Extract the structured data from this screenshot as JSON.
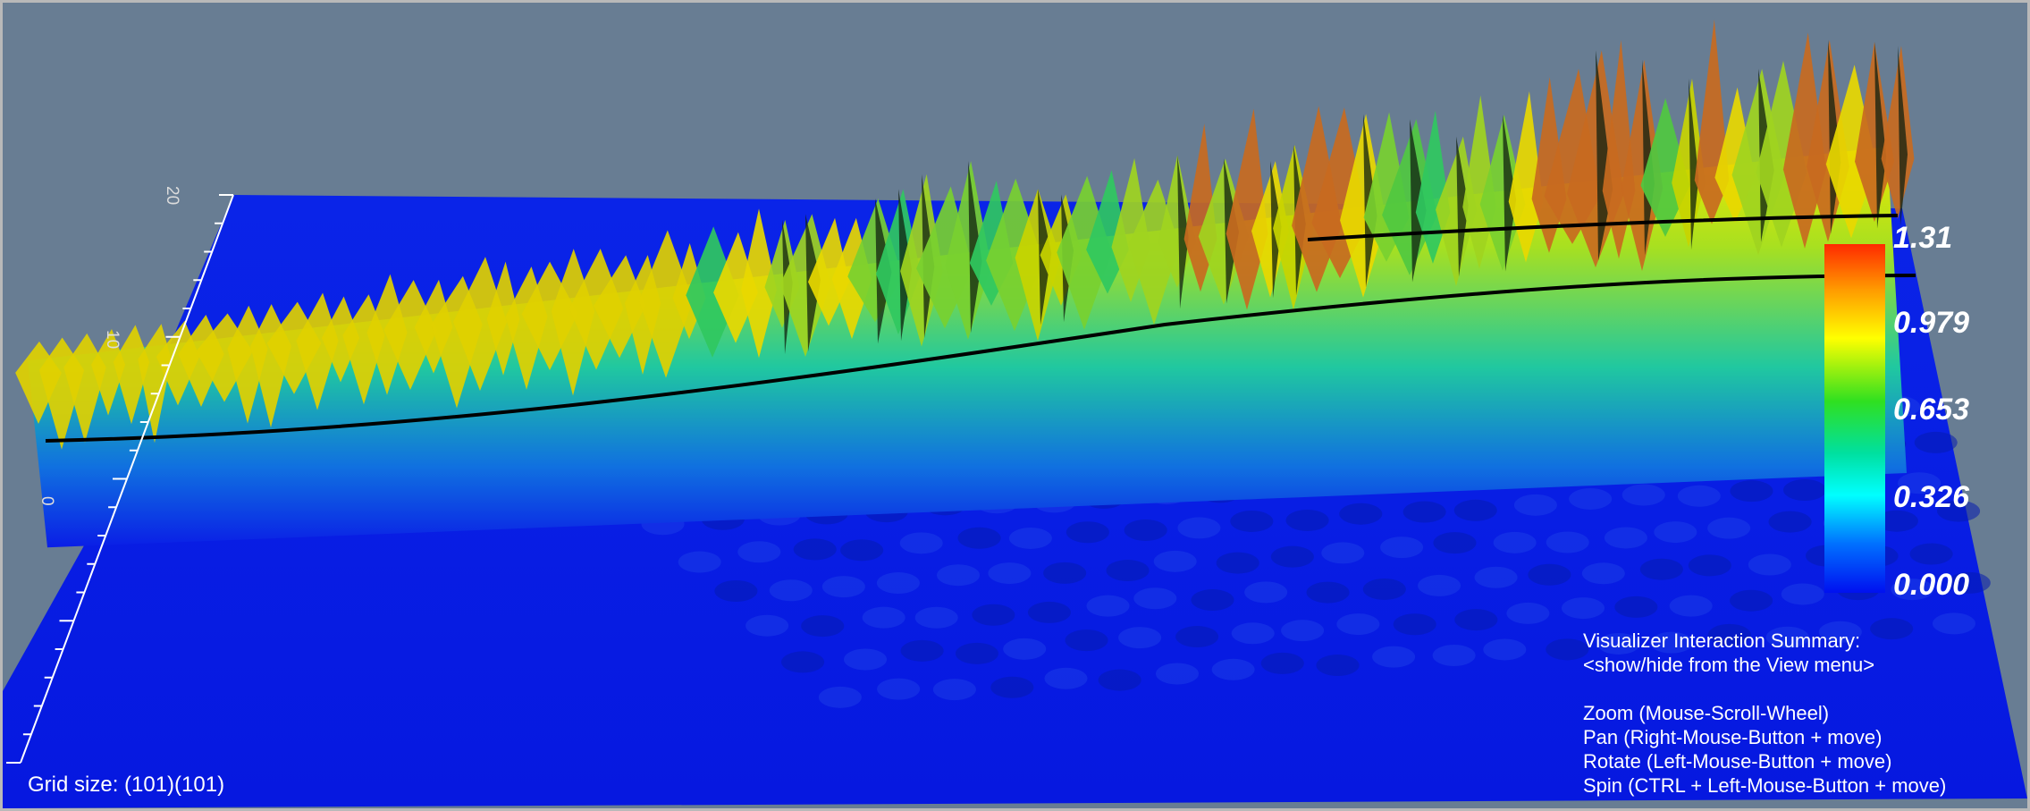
{
  "window": {
    "grid_size_label": "Grid size: (101)(101)"
  },
  "colorbar": {
    "labels": [
      "1.31",
      "0.979",
      "0.653",
      "0.326",
      "0.000"
    ],
    "min": 0.0,
    "max": 1.31,
    "colors": [
      "#ff2a00",
      "#ffc800",
      "#ffff00",
      "#30e020",
      "#00e0a0",
      "#00ffff",
      "#0070ff",
      "#0010f0"
    ]
  },
  "axis": {
    "tick_labels": [
      "20",
      "10",
      "0"
    ]
  },
  "interaction_summary": {
    "title": "Visualizer Interaction Summary:",
    "subtitle": "<show/hide from the View menu>",
    "items": [
      "Zoom (Mouse-Scroll-Wheel)",
      "Pan (Right-Mouse-Button + move)",
      "Rotate (Left-Mouse-Button + move)",
      "Spin (CTRL + Left-Mouse-Button + move)"
    ]
  },
  "colors": {
    "background": "#687d93",
    "surface_base": "#0a1ee6",
    "border": "#b9b9b9"
  }
}
